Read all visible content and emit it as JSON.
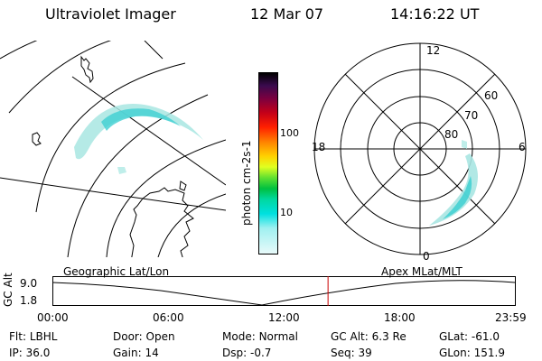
{
  "header": {
    "instrument": "Ultraviolet Imager",
    "date": "12 Mar 07",
    "time": "14:16:22 UT"
  },
  "colorbar": {
    "label": "photon cm-2s-1",
    "ticks": [
      "100",
      "10"
    ]
  },
  "polar": {
    "mlt_labels": {
      "top": "12",
      "left": "18",
      "right": "6",
      "bottom": "0"
    },
    "lat_labels": [
      "60",
      "70",
      "80"
    ]
  },
  "projections": {
    "left": "Geographic Lat/Lon",
    "right": "Apex MLat/MLT"
  },
  "timeline": {
    "ylabel": "GC Alt",
    "y_ticks": [
      "9.0",
      "1.8"
    ],
    "x_ticks": [
      "00:00",
      "06:00",
      "12:00",
      "18:00",
      "23:59"
    ],
    "current_time_fraction": 0.595,
    "marker_color": "#cc0000"
  },
  "status": {
    "row1": [
      {
        "label": "Flt:",
        "value": "LBHL"
      },
      {
        "label": "Door:",
        "value": "Open"
      },
      {
        "label": "Mode:",
        "value": "Normal"
      },
      {
        "label": "GC Alt:",
        "value": "6.3 Re"
      },
      {
        "label": "GLat:",
        "value": "-61.0"
      }
    ],
    "row2": [
      {
        "label": "IP:",
        "value": "36.0"
      },
      {
        "label": "Gain:",
        "value": "14"
      },
      {
        "label": "Dsp:",
        "value": "-0.7"
      },
      {
        "label": "Seq:",
        "value": "39"
      },
      {
        "label": "GLon:",
        "value": "151.9"
      }
    ]
  }
}
